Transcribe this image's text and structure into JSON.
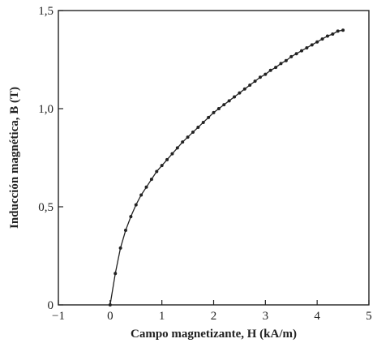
{
  "chart_data": {
    "type": "line",
    "title": "",
    "xlabel": "Campo magnetizante, H  (kA/m)",
    "ylabel": "Inducción magnética, B  (T)",
    "xlim": [
      -1,
      5
    ],
    "ylim": [
      0,
      1.5
    ],
    "x_ticks": [
      -1,
      0,
      1,
      2,
      3,
      4,
      5
    ],
    "y_ticks": [
      0,
      0.5,
      1.0,
      1.5
    ],
    "x_tick_labels": [
      "−1",
      "0",
      "1",
      "2",
      "3",
      "4",
      "5"
    ],
    "y_tick_labels": [
      "0",
      "0,5",
      "1,0",
      "1,5"
    ],
    "grid": false,
    "series": [
      {
        "color": "#222222",
        "marker": "dot",
        "points": [
          [
            0.0,
            0.0
          ],
          [
            0.1,
            0.16
          ],
          [
            0.2,
            0.29
          ],
          [
            0.3,
            0.38
          ],
          [
            0.4,
            0.45
          ],
          [
            0.5,
            0.51
          ],
          [
            0.6,
            0.56
          ],
          [
            0.7,
            0.6
          ],
          [
            0.8,
            0.64
          ],
          [
            0.9,
            0.68
          ],
          [
            1.0,
            0.71
          ],
          [
            1.1,
            0.74
          ],
          [
            1.2,
            0.77
          ],
          [
            1.3,
            0.8
          ],
          [
            1.4,
            0.83
          ],
          [
            1.5,
            0.855
          ],
          [
            1.6,
            0.88
          ],
          [
            1.7,
            0.905
          ],
          [
            1.8,
            0.93
          ],
          [
            1.9,
            0.955
          ],
          [
            2.0,
            0.98
          ],
          [
            2.1,
            1.0
          ],
          [
            2.2,
            1.02
          ],
          [
            2.3,
            1.04
          ],
          [
            2.4,
            1.06
          ],
          [
            2.5,
            1.08
          ],
          [
            2.6,
            1.1
          ],
          [
            2.7,
            1.12
          ],
          [
            2.8,
            1.14
          ],
          [
            2.9,
            1.16
          ],
          [
            3.0,
            1.175
          ],
          [
            3.1,
            1.195
          ],
          [
            3.2,
            1.21
          ],
          [
            3.3,
            1.23
          ],
          [
            3.4,
            1.245
          ],
          [
            3.5,
            1.265
          ],
          [
            3.6,
            1.28
          ],
          [
            3.7,
            1.295
          ],
          [
            3.8,
            1.31
          ],
          [
            3.9,
            1.325
          ],
          [
            4.0,
            1.34
          ],
          [
            4.1,
            1.355
          ],
          [
            4.2,
            1.37
          ],
          [
            4.3,
            1.38
          ],
          [
            4.4,
            1.395
          ],
          [
            4.5,
            1.4
          ]
        ]
      }
    ]
  }
}
